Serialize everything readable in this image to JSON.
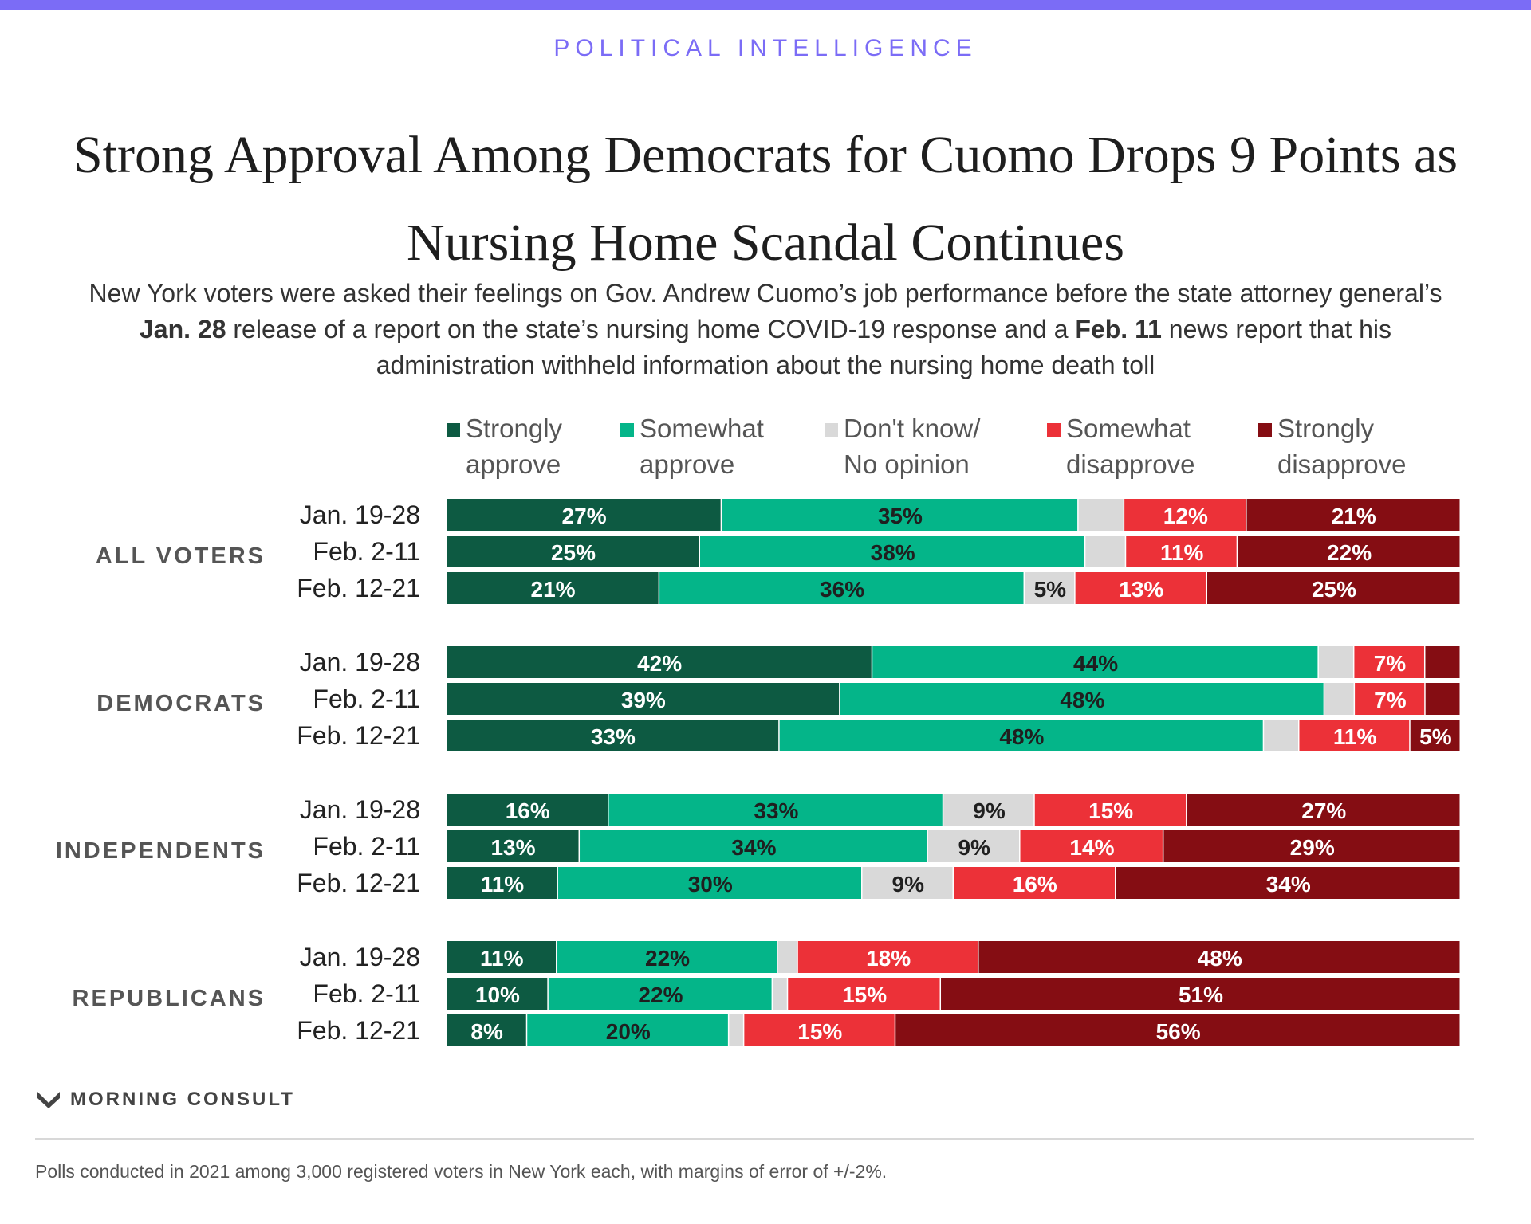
{
  "header": {
    "kicker": "POLITICAL INTELLIGENCE",
    "title": "Strong Approval Among Democrats for Cuomo Drops 9 Points as Nursing Home Scandal Continues",
    "subtitle": {
      "p1": "New York voters were asked their feelings on Gov. Andrew Cuomo’s job performance before the state attorney general’s ",
      "b1": "Jan. 28",
      "p2": " release of a report on the state’s nursing home COVID-19 response and a ",
      "b2": "Feb. 11",
      "p3": " news report that his administration withheld information about the nursing home death toll"
    }
  },
  "colors": {
    "strongly_approve": "#0d5a42",
    "somewhat_approve": "#04b589",
    "dont_know": "#d9d9d9",
    "somewhat_disapprove": "#ec3138",
    "strongly_disapprove": "#850d13",
    "accent": "#7b6cf6"
  },
  "chart_data": {
    "type": "bar",
    "orientation": "horizontal-stacked-100",
    "legend_placement": "top",
    "series": [
      {
        "key": "strongly_approve",
        "name": "Strongly\napprove"
      },
      {
        "key": "somewhat_approve",
        "name": "Somewhat\napprove"
      },
      {
        "key": "dont_know",
        "name": "Don't know/\nNo opinion"
      },
      {
        "key": "somewhat_disapprove",
        "name": "Somewhat\ndisapprove"
      },
      {
        "key": "strongly_disapprove",
        "name": "Strongly\ndisapprove"
      }
    ],
    "groups": [
      {
        "label": "ALL VOTERS",
        "rows": [
          {
            "period": "Jan. 19-28",
            "values": [
              27,
              35,
              4.5,
              12,
              21
            ],
            "labels": [
              "27%",
              "35%",
              "",
              "12%",
              "21%"
            ]
          },
          {
            "period": "Feb. 2-11",
            "values": [
              25,
              38,
              4,
              11,
              22
            ],
            "labels": [
              "25%",
              "38%",
              "",
              "11%",
              "22%"
            ]
          },
          {
            "period": "Feb. 12-21",
            "values": [
              21,
              36,
              5,
              13,
              25
            ],
            "labels": [
              "21%",
              "36%",
              "5%",
              "13%",
              "25%"
            ]
          }
        ]
      },
      {
        "label": "DEMOCRATS",
        "rows": [
          {
            "period": "Jan. 19-28",
            "values": [
              42,
              44,
              3.5,
              7,
              3.5
            ],
            "labels": [
              "42%",
              "44%",
              "",
              "7%",
              ""
            ]
          },
          {
            "period": "Feb. 2-11",
            "values": [
              39,
              48,
              3,
              7,
              3.5
            ],
            "labels": [
              "39%",
              "48%",
              "",
              "7%",
              ""
            ]
          },
          {
            "period": "Feb. 12-21",
            "values": [
              33,
              48,
              3.5,
              11,
              5
            ],
            "labels": [
              "33%",
              "48%",
              "",
              "11%",
              "5%"
            ]
          }
        ]
      },
      {
        "label": "INDEPENDENTS",
        "rows": [
          {
            "period": "Jan. 19-28",
            "values": [
              16,
              33,
              9,
              15,
              27
            ],
            "labels": [
              "16%",
              "33%",
              "9%",
              "15%",
              "27%"
            ]
          },
          {
            "period": "Feb. 2-11",
            "values": [
              13,
              34,
              9,
              14,
              29
            ],
            "labels": [
              "13%",
              "34%",
              "9%",
              "14%",
              "29%"
            ]
          },
          {
            "period": "Feb. 12-21",
            "values": [
              11,
              30,
              9,
              16,
              34
            ],
            "labels": [
              "11%",
              "30%",
              "9%",
              "16%",
              "34%"
            ]
          }
        ]
      },
      {
        "label": "REPUBLICANS",
        "rows": [
          {
            "period": "Jan. 19-28",
            "values": [
              11,
              22,
              2,
              18,
              48
            ],
            "labels": [
              "11%",
              "22%",
              "",
              "18%",
              "48%"
            ]
          },
          {
            "period": "Feb. 2-11",
            "values": [
              10,
              22,
              1.5,
              15,
              51
            ],
            "labels": [
              "10%",
              "22%",
              "",
              "15%",
              "51%"
            ]
          },
          {
            "period": "Feb. 12-21",
            "values": [
              8,
              20,
              1.5,
              15,
              56
            ],
            "labels": [
              "8%",
              "20%",
              "",
              "15%",
              "56%"
            ]
          }
        ]
      }
    ]
  },
  "footer": {
    "logo_text": "MORNING CONSULT",
    "logo_icon": "morning-consult-m-icon",
    "source": "Polls conducted in 2021 among 3,000 registered voters in New York each, with margins of error of +/-2%."
  }
}
